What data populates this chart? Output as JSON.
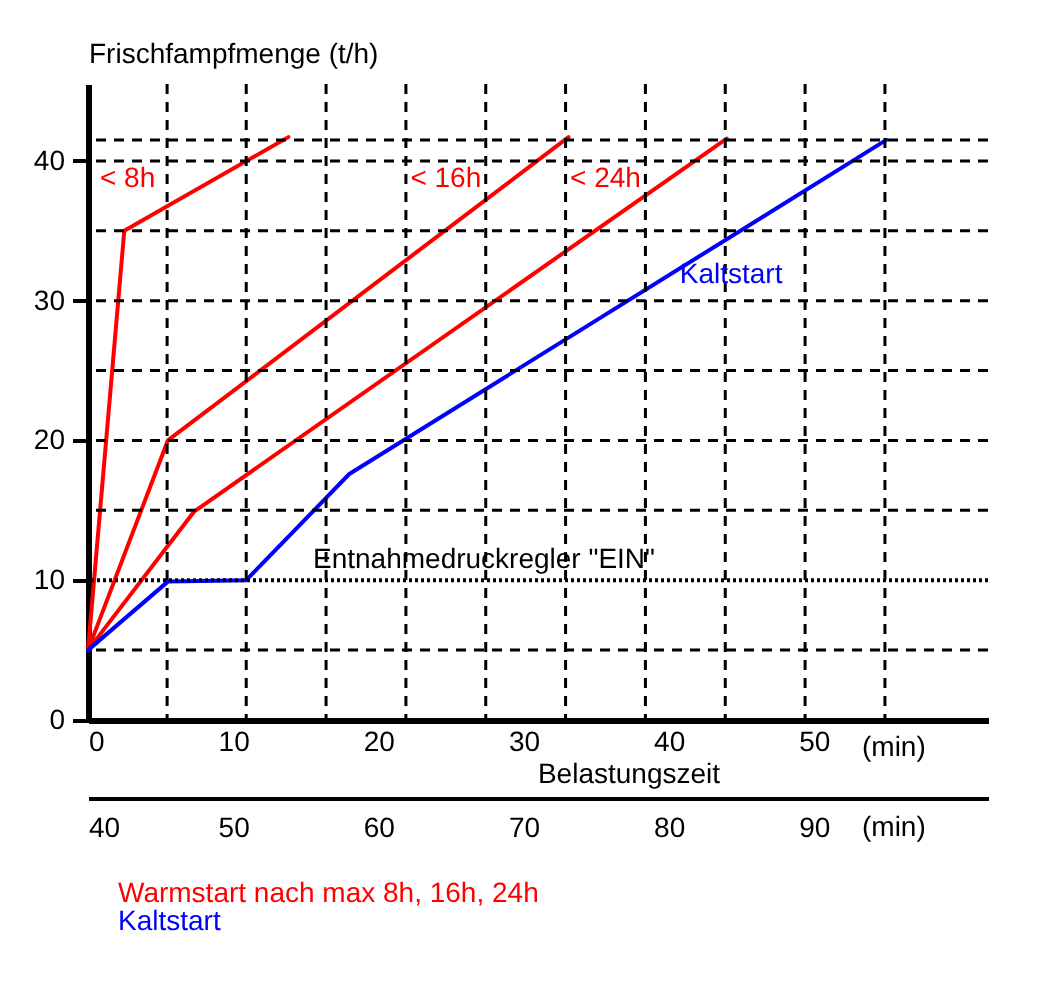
{
  "chart_data": {
    "type": "line",
    "ylabel": "Frischfampfmenge (t/h)",
    "xlabel": "Belastungszeit",
    "xlim": [
      0,
      62
    ],
    "ylim": [
      0,
      45.5
    ],
    "x2lim": [
      40,
      102
    ],
    "xticks": [
      0,
      10,
      20,
      30,
      40,
      50,
      {
        "value": 5.45,
        "label": null
      },
      {
        "value": 10.9,
        "label": null
      },
      {
        "value": 16.4,
        "label": null
      },
      {
        "value": 21.9,
        "label": null
      },
      {
        "value": 27.4,
        "label": null
      },
      {
        "value": 32.9,
        "label": null
      },
      {
        "value": 38.4,
        "label": null
      },
      {
        "value": 43.9,
        "label": null
      },
      {
        "value": 49.4,
        "label": null
      },
      {
        "value": 54.9,
        "label": null
      }
    ],
    "yticks": [
      0,
      10,
      20,
      30,
      40,
      {
        "value": 5,
        "label": null
      },
      {
        "value": 15,
        "label": null
      },
      {
        "value": 25,
        "label": null
      },
      {
        "value": 35,
        "label": null
      },
      {
        "value": 41.5,
        "label": null
      }
    ],
    "x2ticks": [
      40,
      50,
      60,
      70,
      80,
      90
    ],
    "grid": true,
    "marker": "none",
    "legend": false,
    "series": [
      {
        "name": "< 8h",
        "color": "#ff0000",
        "x": [
          0,
          2.5,
          13.8
        ],
        "values": [
          5,
          35,
          41.7
        ]
      },
      {
        "name": "< 16h",
        "color": "#ff0000",
        "x": [
          0,
          5.5,
          33.1
        ],
        "values": [
          5,
          20,
          41.7
        ]
      },
      {
        "name": "< 24h",
        "color": "#ff0000",
        "x": [
          0,
          7.3,
          44
        ],
        "values": [
          5,
          14.9,
          41.6
        ]
      },
      {
        "name": "Kaltstart",
        "color": "#0000ff",
        "x": [
          0,
          5.5,
          10.9,
          18,
          55
        ],
        "values": [
          5,
          9.9,
          10,
          17.6,
          41.5
        ]
      }
    ],
    "ref_lines": [
      {
        "axis": "y",
        "value": 10,
        "label": "Entnahmedruckregler \"EIN\"",
        "line_style": "dotted"
      }
    ],
    "annotations": [
      "(min)",
      "(min)",
      "Warmstart  nach max 8h,  16h,  24h",
      "Kaltstart"
    ]
  }
}
